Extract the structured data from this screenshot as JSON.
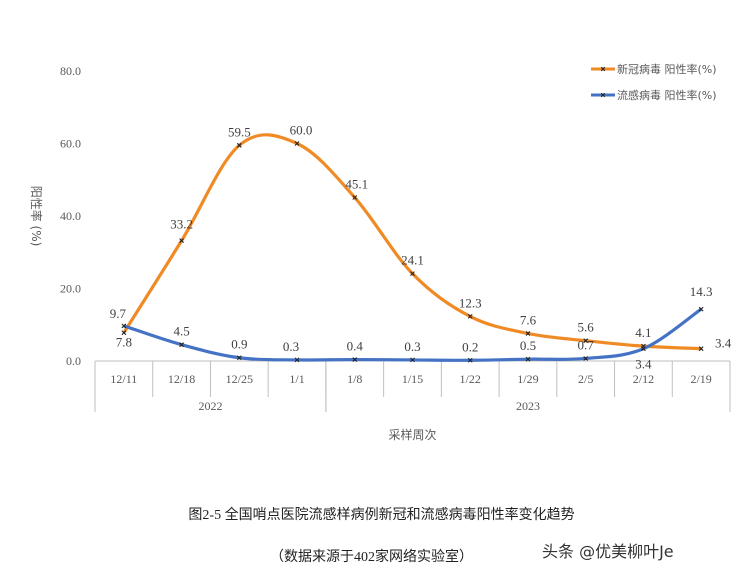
{
  "chart_data": {
    "type": "line",
    "categories": [
      "12/11",
      "12/18",
      "12/25",
      "1/1",
      "1/8",
      "1/15",
      "1/22",
      "1/29",
      "2/5",
      "2/12",
      "2/19"
    ],
    "groups": [
      {
        "label": "2022",
        "span": 4
      },
      {
        "label": "2023",
        "span": 7
      }
    ],
    "series": [
      {
        "name": "新冠病毒 阳性率(%)",
        "color": "#F08A24",
        "values": [
          7.8,
          33.2,
          59.5,
          60.0,
          45.1,
          24.1,
          12.3,
          7.6,
          5.6,
          4.1,
          3.4
        ]
      },
      {
        "name": "流感病毒 阳性率(%)",
        "color": "#4472C4",
        "values": [
          9.7,
          4.5,
          0.9,
          0.3,
          0.4,
          0.3,
          0.2,
          0.5,
          0.7,
          3.4,
          14.3
        ]
      }
    ],
    "ylim": [
      0,
      80
    ],
    "yticks": [
      "0.0",
      "20.0",
      "40.0",
      "60.0",
      "80.0"
    ],
    "xlabel": "采样周次",
    "ylabel": "阳性率 (%)",
    "legend": "top-right",
    "smooth": true,
    "grid": false
  },
  "caption": "图2-5 全国哨点医院流感样病例新冠和流感病毒阳性率变化趋势",
  "source": "（数据来源于402家网络实验室）",
  "watermark": "头条 @优美柳叶Je"
}
